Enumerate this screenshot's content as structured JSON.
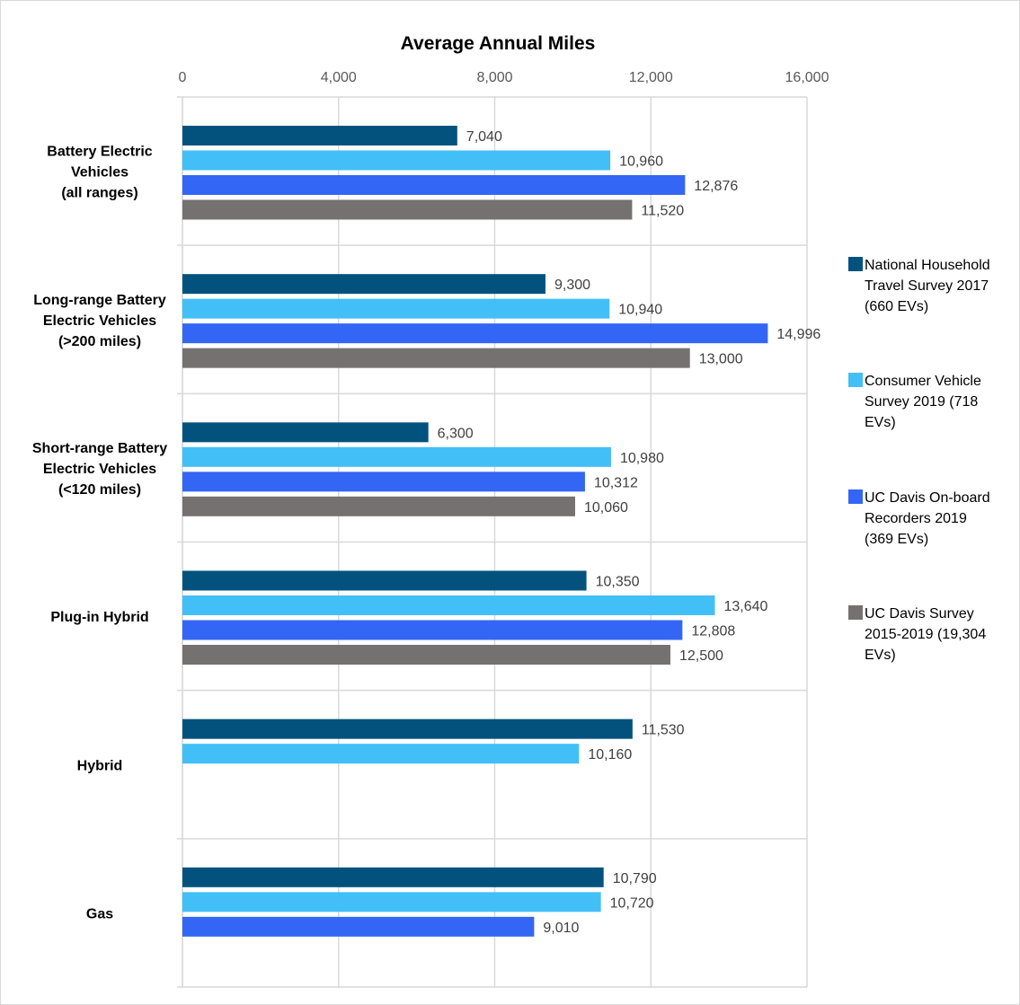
{
  "chart_data": {
    "type": "bar",
    "orientation": "horizontal",
    "title": "Average Annual Miles",
    "xlim": [
      0,
      16000
    ],
    "xticks": [
      "0",
      "4,000",
      "8,000",
      "12,000",
      "16,000"
    ],
    "xtick_values": [
      0,
      4000,
      8000,
      12000,
      16000
    ],
    "grid": true,
    "legend_position": "right",
    "categories": [
      [
        "Battery Electric",
        "Vehicles",
        "(all ranges)"
      ],
      [
        "Long-range Battery",
        "Electric Vehicles",
        "(>200 miles)"
      ],
      [
        "Short-range Battery",
        "Electric Vehicles",
        "(<120 miles)"
      ],
      [
        "Plug-in Hybrid"
      ],
      [
        "Hybrid"
      ],
      [
        "Gas"
      ]
    ],
    "series": [
      {
        "name": "National Household Travel Survey 2017 (660 EVs)",
        "legend_lines": [
          "National Household",
          "Travel Survey 2017",
          "(660 EVs)"
        ],
        "color": "#03527e",
        "values": [
          7040,
          9300,
          6300,
          10350,
          11530,
          10790
        ],
        "labels": [
          "7,040",
          "9,300",
          "6,300",
          "10,350",
          "11,530",
          "10,790"
        ]
      },
      {
        "name": "Consumer Vehicle Survey 2019 (718 EVs)",
        "legend_lines": [
          "Consumer Vehicle",
          "Survey 2019 (718",
          "EVs)"
        ],
        "color": "#43bff7",
        "values": [
          10960,
          10940,
          10980,
          13640,
          10160,
          10720
        ],
        "labels": [
          "10,960",
          "10,940",
          "10,980",
          "13,640",
          "10,160",
          "10,720"
        ]
      },
      {
        "name": "UC Davis On-board Recorders 2019 (369 EVs)",
        "legend_lines": [
          "UC Davis On-board",
          "Recorders 2019",
          "(369 EVs)"
        ],
        "color": "#3366f5",
        "values": [
          12876,
          14996,
          10312,
          12808,
          null,
          9010
        ],
        "labels": [
          "12,876",
          "14,996",
          "10,312",
          "12,808",
          null,
          "9,010"
        ]
      },
      {
        "name": "UC Davis Survey 2015-2019 (19,304 EVs)",
        "legend_lines": [
          "UC Davis Survey",
          "2015-2019 (19,304",
          "EVs)"
        ],
        "color": "#767171",
        "values": [
          11520,
          13000,
          10060,
          12500,
          null,
          null
        ],
        "labels": [
          "11,520",
          "13,000",
          "10,060",
          "12,500",
          null,
          null
        ]
      }
    ]
  }
}
